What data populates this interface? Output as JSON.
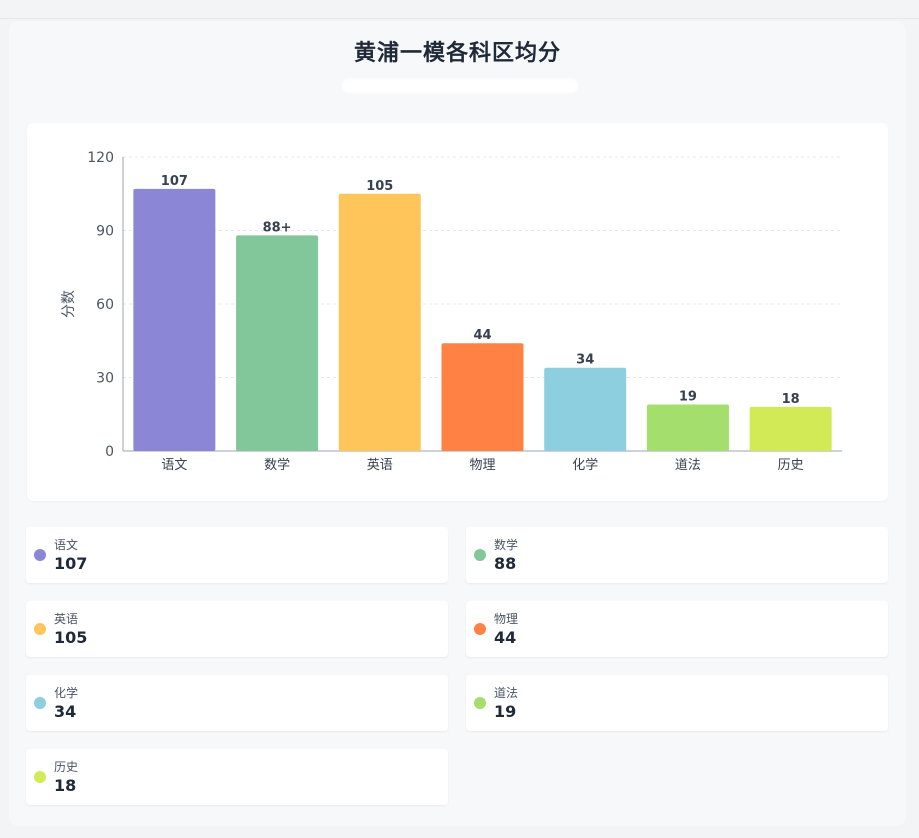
{
  "title": "黄浦一模各科区均分",
  "chart_data": {
    "type": "bar",
    "ylabel": "分数",
    "ylim": [
      0,
      120
    ],
    "yticks": [
      0,
      30,
      60,
      90,
      120
    ],
    "grid": true,
    "categories": [
      "语文",
      "数学",
      "英语",
      "物理",
      "化学",
      "道法",
      "历史"
    ],
    "values": [
      107,
      88,
      105,
      44,
      34,
      19,
      18
    ],
    "value_labels": [
      "107",
      "88+",
      "105",
      "44",
      "34",
      "19",
      "18"
    ],
    "colors": [
      "#8b86d6",
      "#82c799",
      "#fec55a",
      "#ff8143",
      "#8ecfdf",
      "#a4de6c",
      "#d1ea55"
    ]
  },
  "legend": [
    {
      "name": "语文",
      "value": "107",
      "color": "#8b86d6"
    },
    {
      "name": "数学",
      "value": "88",
      "color": "#82c799"
    },
    {
      "name": "英语",
      "value": "105",
      "color": "#fec55a"
    },
    {
      "name": "物理",
      "value": "44",
      "color": "#ff8143"
    },
    {
      "name": "化学",
      "value": "34",
      "color": "#8ecfdf"
    },
    {
      "name": "道法",
      "value": "19",
      "color": "#a4de6c"
    },
    {
      "name": "历史",
      "value": "18",
      "color": "#d1ea55"
    }
  ]
}
